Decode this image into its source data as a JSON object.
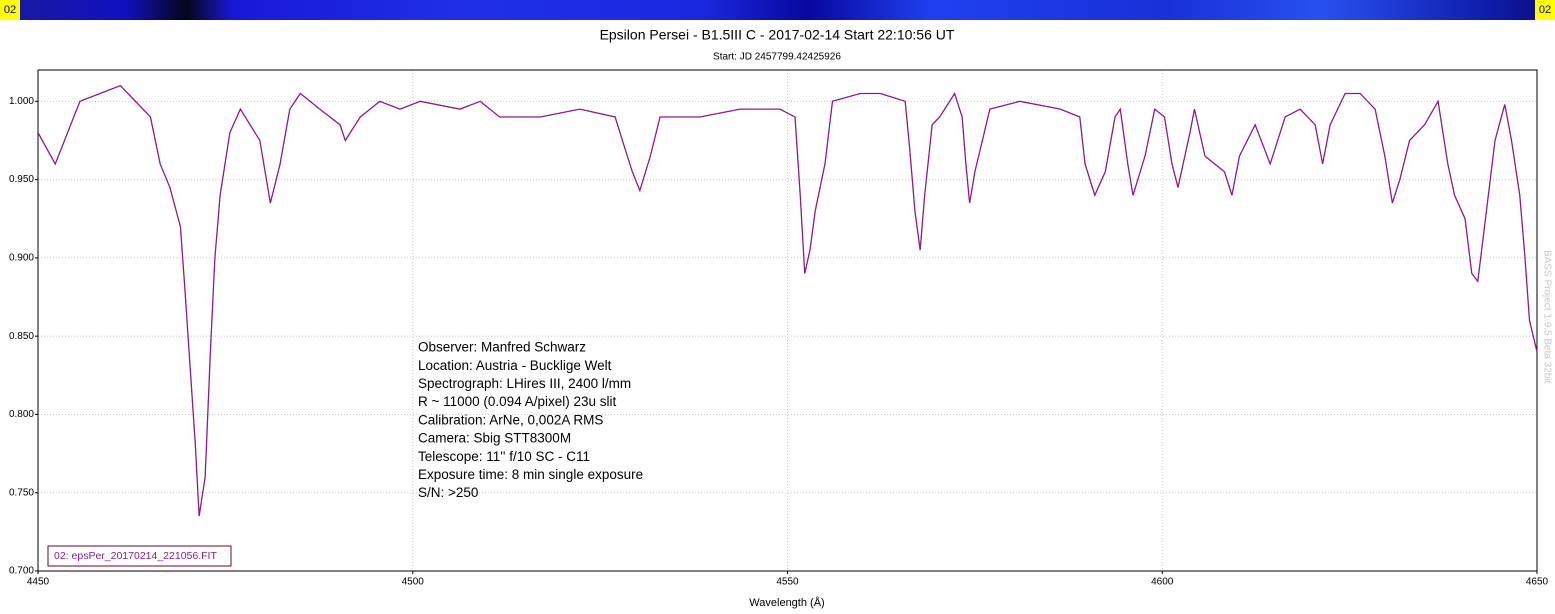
{
  "chart_data": {
    "type": "line",
    "title": "Epsilon Persei - B1.5III C - 2017-02-14 Start 22:10:56 UT",
    "subtitle": "Start: JD 2457799.42425926",
    "x_label": "Wavelength (Å)",
    "annotations": [
      "Observer: Manfred Schwarz",
      "Location: Austria - Bucklige Welt",
      "Spectrograph: LHires III, 2400 l/mm",
      "R ~ 11000 (0.094 A/pixel) 23u slit",
      "Calibration: ArNe, 0,002A RMS",
      "Camera: Sbig STT8300M",
      "Telescope: 11'' f/10 SC - C11",
      "Exposure time: 8 min single exposure",
      "S/N:  >250"
    ],
    "watermark": "BASS Project 1.9.5 Beta 32bit",
    "channel_labels": [
      "02",
      "02"
    ],
    "xlim": [
      4450,
      4650
    ],
    "xticks": [
      4450,
      4500,
      4550,
      4600,
      4650
    ],
    "ylim": [
      0.7,
      1.02
    ],
    "yticks": [
      {
        "value": 0.7,
        "label": "0.700"
      },
      {
        "value": 0.75,
        "label": "0.750"
      },
      {
        "value": 0.8,
        "label": "0.800"
      },
      {
        "value": 0.85,
        "label": "0.850"
      },
      {
        "value": 0.9,
        "label": "0.900"
      },
      {
        "value": 0.95,
        "label": "0.950"
      },
      {
        "value": 1.0,
        "label": "1.000"
      }
    ],
    "grid": true,
    "x": [
      4450,
      4452.3,
      4455.6,
      4461,
      4465,
      4466.3,
      4467.6,
      4469,
      4469.6,
      4470.3,
      4471,
      4471.5,
      4472.3,
      4473,
      4473.6,
      4474.3,
      4475.6,
      4477,
      4478.3,
      4479.6,
      4480.3,
      4481,
      4482.3,
      4483.6,
      4485,
      4487.6,
      4490.3,
      4491,
      4493,
      4495.6,
      4498.3,
      4501,
      4506.3,
      4509,
      4511.6,
      4517,
      4522.3,
      4527,
      4528.3,
      4529.3,
      4530.3,
      4531.7,
      4533,
      4538.3,
      4543.7,
      4549,
      4551,
      4551.7,
      4552.3,
      4553,
      4553.7,
      4555,
      4556,
      4559.7,
      4562.4,
      4565.7,
      4566.3,
      4567,
      4567.7,
      4568.3,
      4569.3,
      4570.3,
      4572.3,
      4573.3,
      4573.8,
      4574.3,
      4575,
      4577,
      4581,
      4586.4,
      4589,
      4589.7,
      4591,
      4592.4,
      4593.7,
      4594.4,
      4595.4,
      4596.1,
      4597.7,
      4599,
      4600.3,
      4601.3,
      4602.1,
      4603.7,
      4604.3,
      4605.7,
      4607,
      4608.3,
      4609.3,
      4610.3,
      4612.4,
      4614.4,
      4616.4,
      4618.4,
      4620.4,
      4621.4,
      4622.4,
      4624.4,
      4626.4,
      4628.4,
      4629.7,
      4630.7,
      4631.7,
      4633,
      4635,
      4636.8,
      4638.1,
      4639,
      4640.4,
      4641.3,
      4642.1,
      4643,
      4644.4,
      4645.7,
      4646.6,
      4647.7,
      4648.4,
      4649,
      4650
    ],
    "series": [
      {
        "name": "02: epsPer_20170214_221056.FIT",
        "color": "#8b1a8b",
        "values": [
          0.98,
          0.96,
          1.0,
          1.01,
          0.99,
          0.96,
          0.945,
          0.92,
          0.88,
          0.83,
          0.78,
          0.735,
          0.76,
          0.84,
          0.9,
          0.94,
          0.98,
          0.995,
          0.985,
          0.975,
          0.955,
          0.935,
          0.96,
          0.995,
          1.005,
          0.995,
          0.985,
          0.975,
          0.99,
          1.0,
          0.995,
          1.0,
          0.995,
          1.0,
          0.99,
          0.99,
          0.995,
          0.99,
          0.97,
          0.955,
          0.943,
          0.965,
          0.99,
          0.99,
          0.995,
          0.995,
          0.99,
          0.94,
          0.89,
          0.905,
          0.93,
          0.96,
          1.0,
          1.005,
          1.005,
          1.0,
          0.97,
          0.93,
          0.905,
          0.94,
          0.985,
          0.99,
          1.005,
          0.99,
          0.96,
          0.935,
          0.955,
          0.995,
          1.0,
          0.995,
          0.99,
          0.96,
          0.94,
          0.955,
          0.99,
          0.995,
          0.96,
          0.94,
          0.965,
          0.995,
          0.99,
          0.96,
          0.945,
          0.98,
          0.995,
          0.965,
          0.96,
          0.955,
          0.94,
          0.965,
          0.985,
          0.96,
          0.99,
          0.995,
          0.985,
          0.96,
          0.985,
          1.005,
          1.005,
          0.995,
          0.965,
          0.935,
          0.95,
          0.975,
          0.985,
          1.0,
          0.96,
          0.94,
          0.925,
          0.89,
          0.885,
          0.92,
          0.975,
          0.998,
          0.975,
          0.94,
          0.9,
          0.86,
          0.84
        ]
      }
    ]
  }
}
